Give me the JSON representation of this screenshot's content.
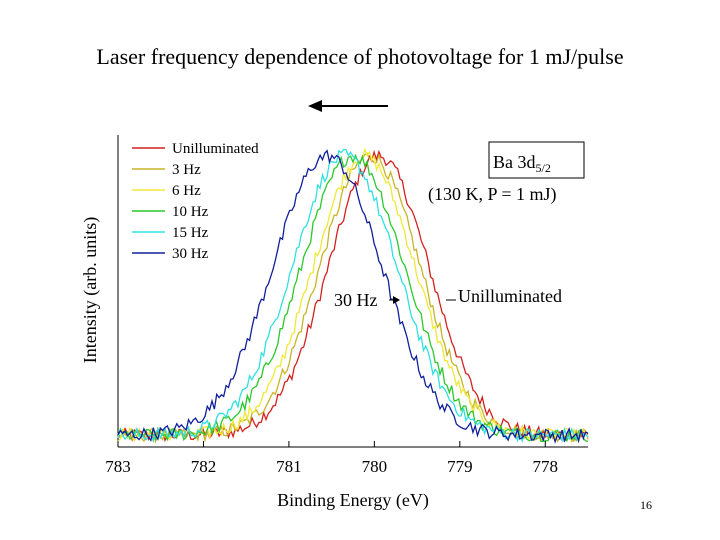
{
  "slide": {
    "title": "Laser frequency dependence of photovoltage for 1 mJ/pulse",
    "page_number": "16"
  },
  "chart_data": {
    "type": "line",
    "xlabel": "Binding Energy (eV)",
    "ylabel": "Intensity (arb. units)",
    "x_reversed": true,
    "xlim": [
      783.0,
      777.5
    ],
    "ylim": [
      0,
      1.05
    ],
    "x_ticks": [
      "783",
      "782",
      "781",
      "780",
      "779",
      "778"
    ],
    "x_tick_values": [
      783,
      782,
      781,
      780,
      779,
      778
    ],
    "legend_position": "top-left",
    "series": [
      {
        "name": "Unilluminated",
        "color": "#d42020",
        "center": 779.95,
        "width": 0.7
      },
      {
        "name": "3 Hz",
        "color": "#c8b428",
        "center": 780.05,
        "width": 0.7
      },
      {
        "name": "6 Hz",
        "color": "#f0e838",
        "center": 780.12,
        "width": 0.71
      },
      {
        "name": "10 Hz",
        "color": "#2cc82c",
        "center": 780.25,
        "width": 0.72
      },
      {
        "name": "15 Hz",
        "color": "#30e0e0",
        "center": 780.35,
        "width": 0.73
      },
      {
        "name": "30 Hz",
        "color": "#10209c",
        "center": 780.55,
        "width": 0.76
      }
    ],
    "annotations": {
      "species_box_line1": "Ba 3d",
      "species_box_sub": "5/2",
      "conditions": "(130 K, P = 1 mJ)",
      "label_30hz": "30 Hz",
      "label_unilluminated": "Unilluminated"
    }
  }
}
